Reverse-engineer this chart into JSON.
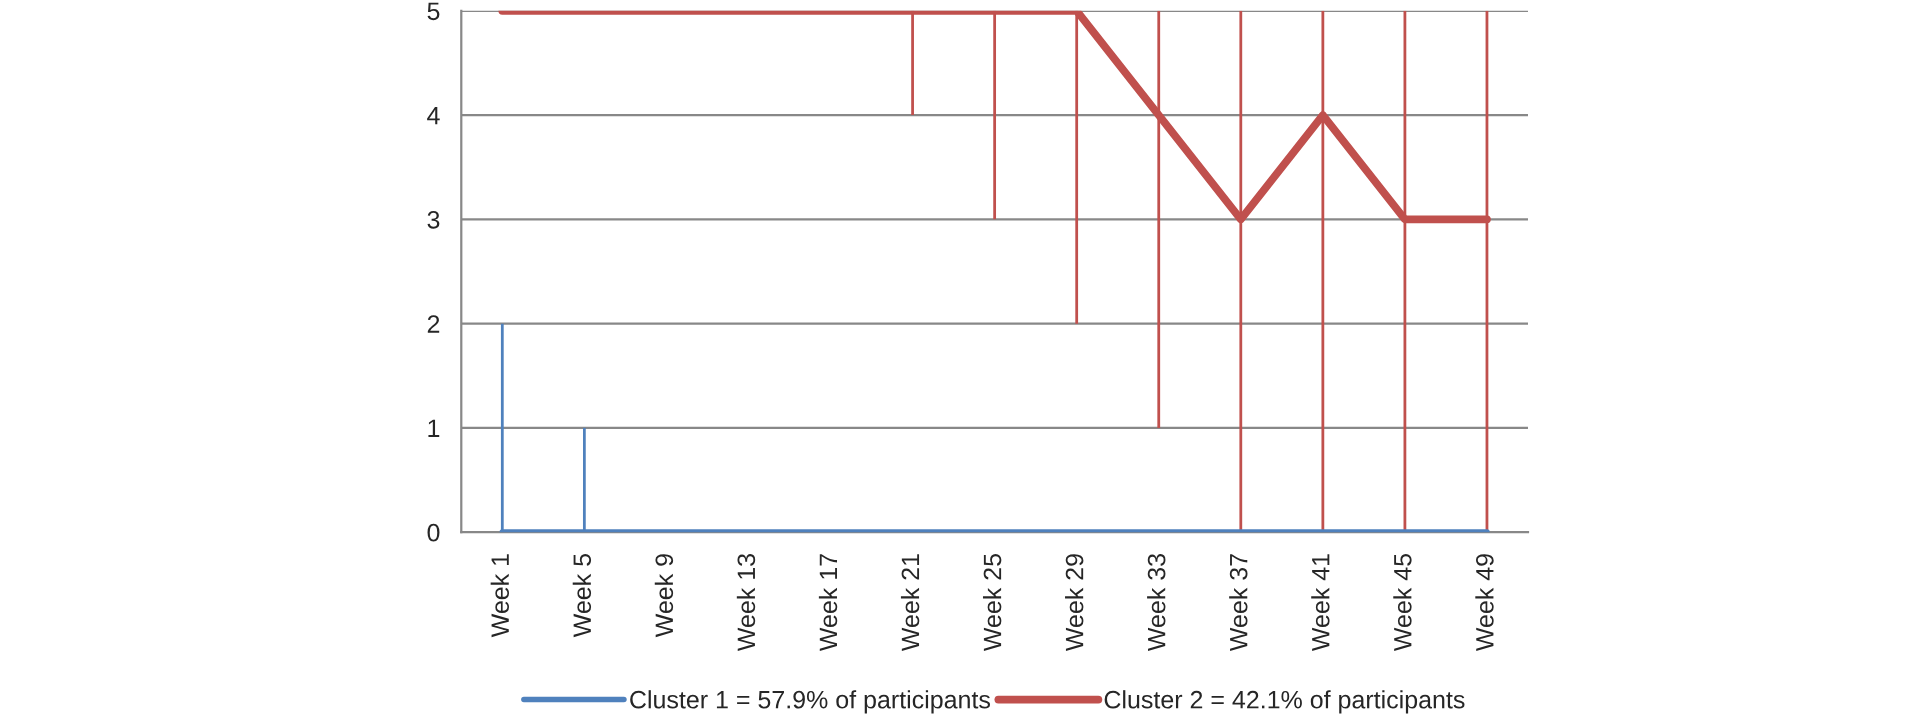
{
  "chart_data": {
    "type": "line",
    "categories": [
      "Week 1",
      "Week 5",
      "Week 9",
      "Week 13",
      "Week 17",
      "Week 21",
      "Week 25",
      "Week 29",
      "Week 33",
      "Week 37",
      "Week 41",
      "Week 45",
      "Week 49"
    ],
    "series": [
      {
        "name": "Cluster 1 = 57.9% of participants",
        "color": "#4f81bd",
        "values": [
          0,
          0,
          0,
          0,
          0,
          0,
          0,
          0,
          0,
          0,
          0,
          0,
          0
        ],
        "errors": [
          [
            0,
            2
          ],
          [
            0,
            1
          ],
          null,
          null,
          null,
          null,
          null,
          null,
          null,
          null,
          null,
          null,
          null
        ]
      },
      {
        "name": "Cluster 2 = 42.1% of participants",
        "color": "#c0504d",
        "values": [
          5,
          5,
          5,
          5,
          5,
          5,
          5,
          5,
          4,
          3,
          4,
          3,
          3
        ],
        "errors": [
          null,
          null,
          null,
          null,
          null,
          [
            4,
            5
          ],
          [
            3,
            5
          ],
          [
            2,
            5
          ],
          [
            1,
            5
          ],
          [
            0,
            5
          ],
          [
            0,
            5
          ],
          [
            0,
            5
          ],
          [
            0,
            5
          ]
        ]
      }
    ],
    "ylim": [
      0,
      5
    ],
    "yticks": [
      0,
      1,
      2,
      3,
      4,
      5
    ],
    "grid": "y",
    "legend": "bottom",
    "marker": "none",
    "line_style": "solid"
  }
}
